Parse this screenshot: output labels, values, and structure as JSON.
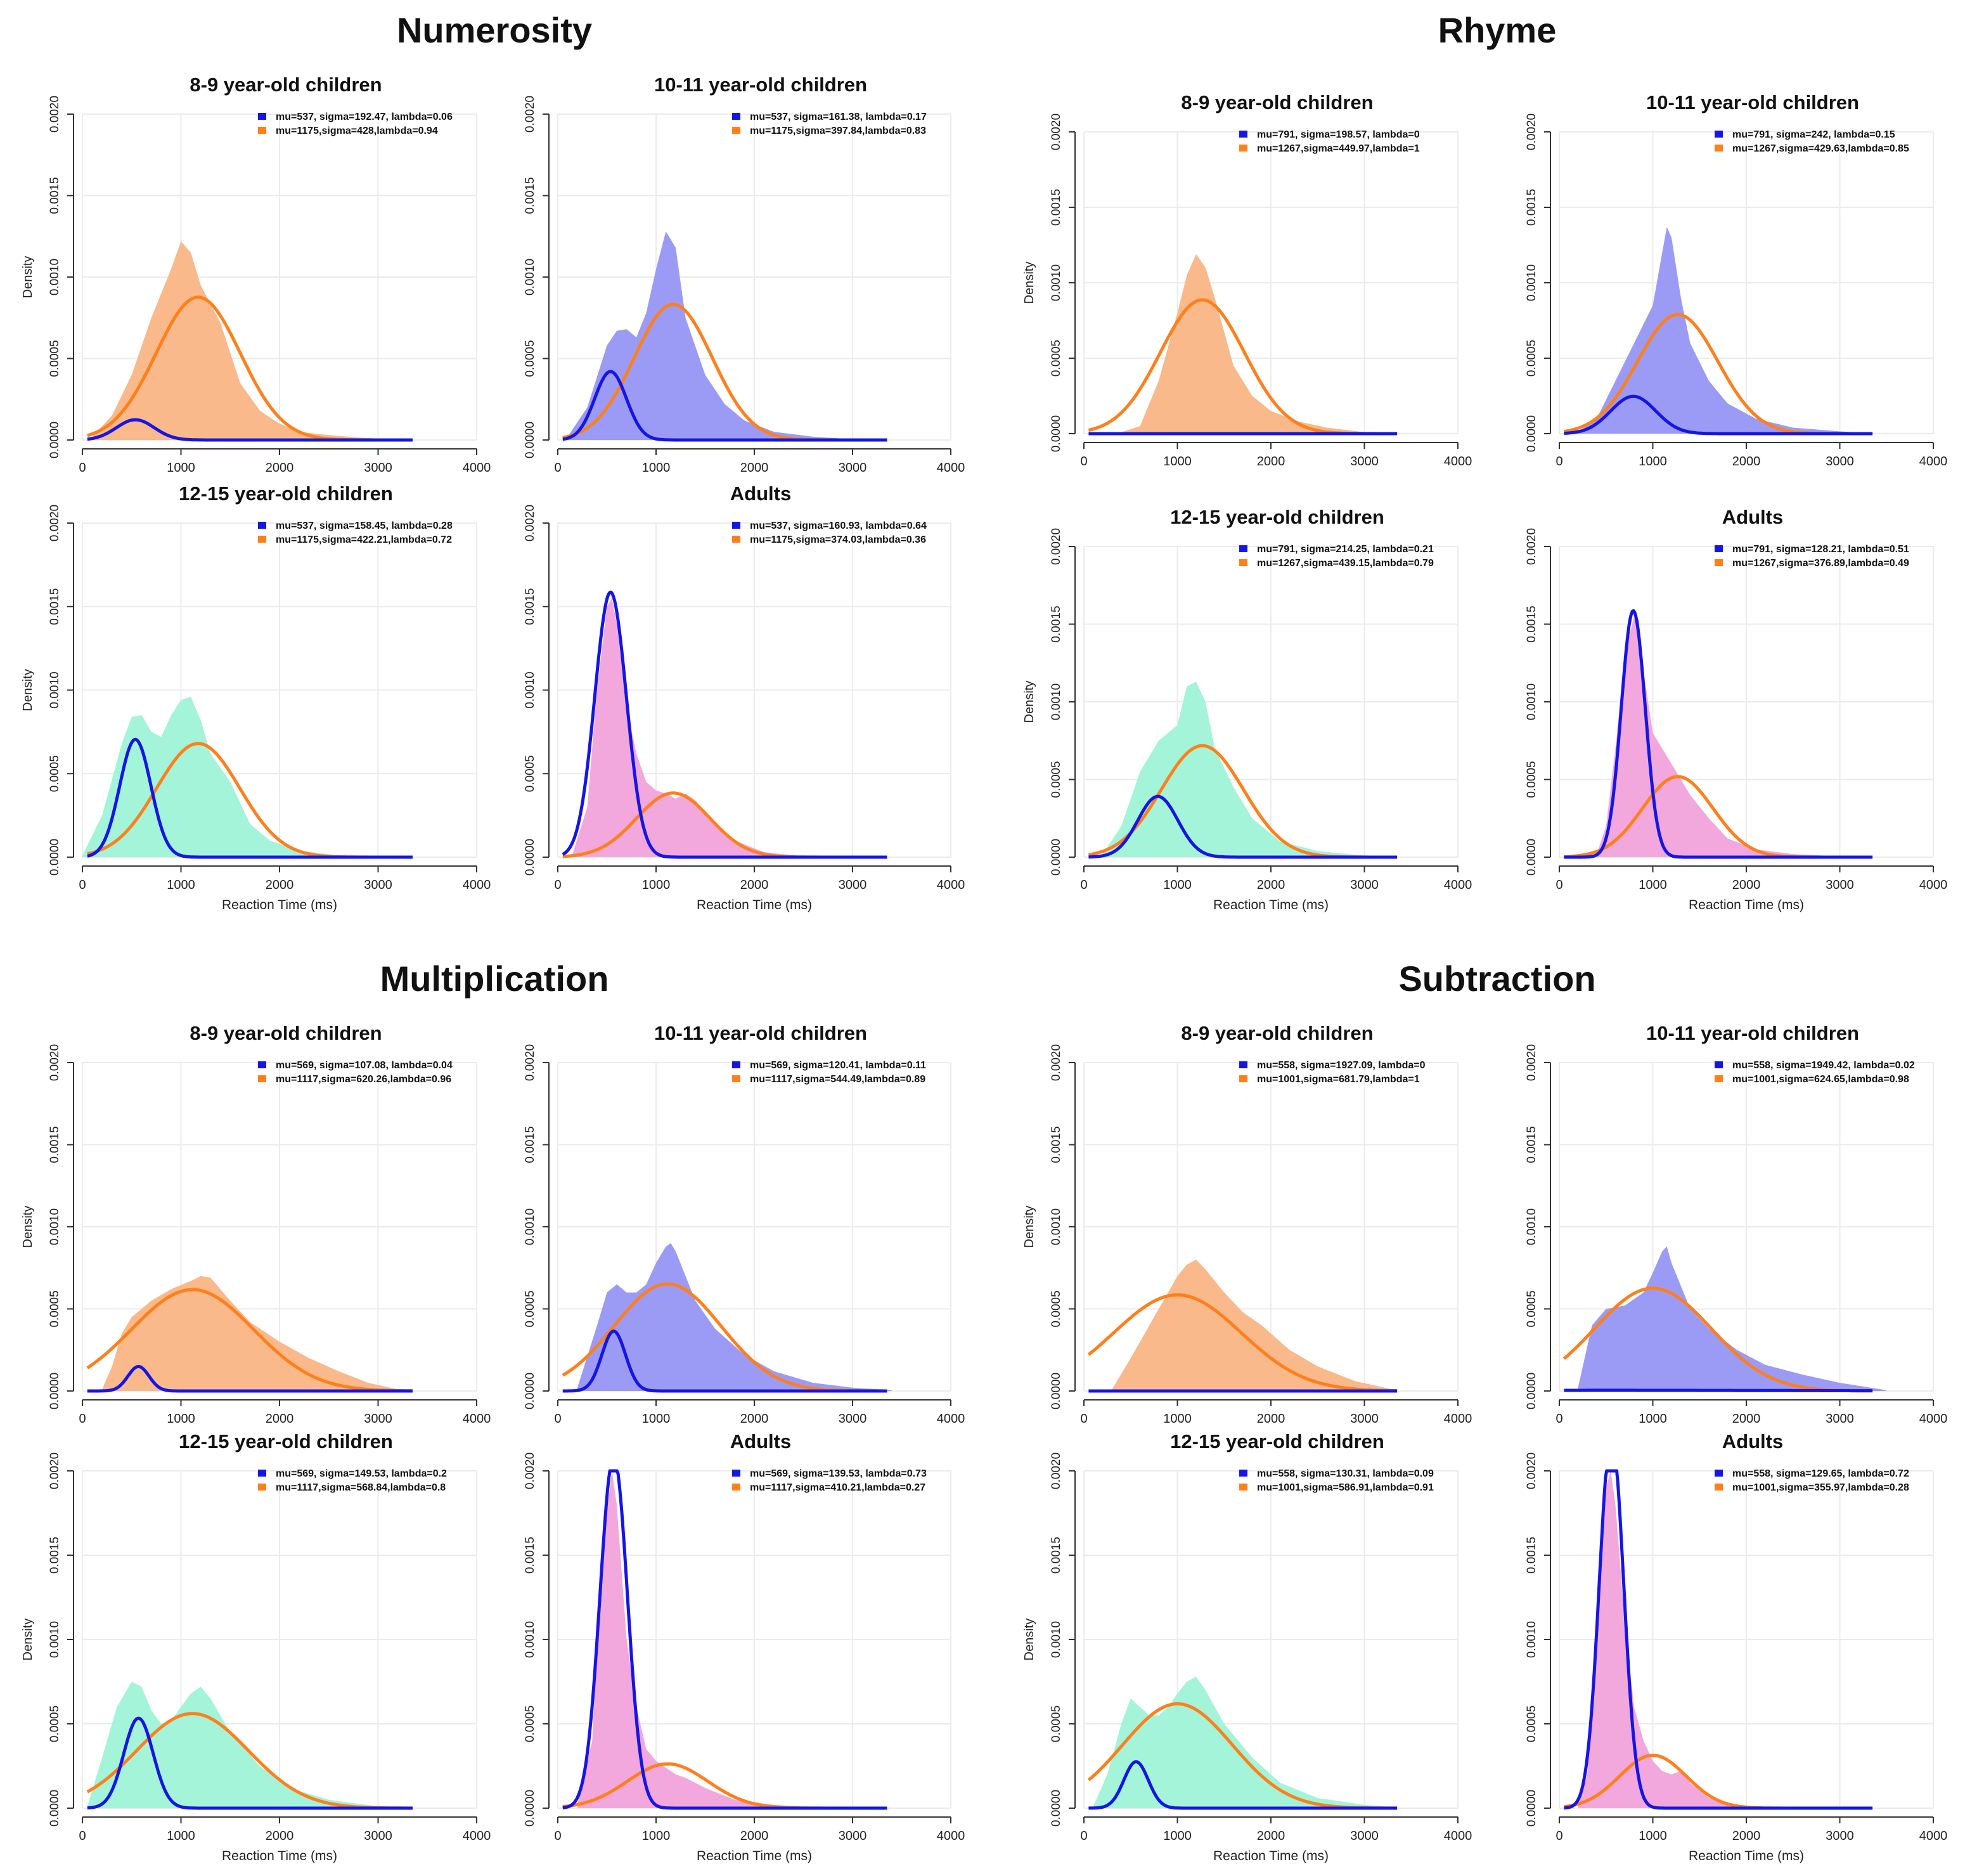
{
  "figure": {
    "sections": [
      {
        "title": "Numerosity"
      },
      {
        "title": "Rhyme"
      },
      {
        "title": "Multiplication"
      },
      {
        "title": "Subtraction"
      }
    ]
  },
  "colors": {
    "fast_component": "#1515e6",
    "slow_component": "#ff7f1a",
    "fill_8_9": "#f9b98b",
    "fill_10_11": "#9b9bf6",
    "fill_12_15": "#a3f4d9",
    "fill_adults": "#f2a8dc",
    "grid": "#ebebeb",
    "axis": "#333333"
  },
  "axes": {
    "xlabel": "Reaction Time (ms)",
    "ylabel": "Density",
    "xlim": [
      0,
      4000
    ],
    "ylim": [
      0,
      0.002
    ],
    "xticks": [
      "0",
      "1000",
      "2000",
      "3000",
      "4000"
    ],
    "yticks": [
      "0.0000",
      "0.0005",
      "0.0010",
      "0.0015",
      "0.0020"
    ]
  },
  "chart_data": [
    {
      "section": "Numerosity",
      "title": "8-9 year-old children",
      "type": "area",
      "fill": "fill_8_9",
      "legend": [
        "mu=537, sigma=192.47, lambda=0.06",
        "mu=1175,sigma=428,lambda=0.94"
      ],
      "fast": {
        "mu": 537,
        "sigma": 192.47,
        "lambda": 0.06
      },
      "slow": {
        "mu": 1175,
        "sigma": 428,
        "lambda": 0.94
      },
      "x": [
        100,
        300,
        500,
        700,
        900,
        1000,
        1100,
        1200,
        1400,
        1600,
        1800,
        2000,
        2200,
        2500,
        2800,
        3100
      ],
      "density": [
        2e-05,
        0.00015,
        0.0004,
        0.00075,
        0.00105,
        0.00122,
        0.00115,
        0.00095,
        0.00072,
        0.00035,
        0.00018,
        0.0001,
        5e-05,
        3e-05,
        1.5e-05,
        5e-06
      ],
      "show_xlabel": false,
      "show_ylabel": true
    },
    {
      "section": "Numerosity",
      "title": "10-11 year-old children",
      "type": "area",
      "fill": "fill_10_11",
      "legend": [
        "mu=537, sigma=161.38, lambda=0.17",
        "mu=1175,sigma=397.84,lambda=0.83"
      ],
      "fast": {
        "mu": 537,
        "sigma": 161.38,
        "lambda": 0.17
      },
      "slow": {
        "mu": 1175,
        "sigma": 397.84,
        "lambda": 0.83
      },
      "x": [
        100,
        300,
        500,
        600,
        700,
        800,
        900,
        1000,
        1100,
        1200,
        1300,
        1500,
        1700,
        1900,
        2200,
        2600,
        3000
      ],
      "density": [
        2e-05,
        0.0002,
        0.00058,
        0.00067,
        0.00068,
        0.00063,
        0.00078,
        0.00105,
        0.00128,
        0.00118,
        0.00075,
        0.0004,
        0.00022,
        0.00012,
        5e-05,
        2e-05,
        5e-06
      ],
      "show_xlabel": false,
      "show_ylabel": false
    },
    {
      "section": "Rhyme",
      "title": "8-9 year-old children",
      "type": "area",
      "fill": "fill_8_9",
      "legend": [
        "mu=791, sigma=198.57, lambda=0",
        "mu=1267,sigma=449.97,lambda=1"
      ],
      "fast": {
        "mu": 791,
        "sigma": 198.57,
        "lambda": 0
      },
      "slow": {
        "mu": 1267,
        "sigma": 449.97,
        "lambda": 1
      },
      "x": [
        400,
        600,
        800,
        1000,
        1100,
        1200,
        1300,
        1400,
        1600,
        1800,
        2000,
        2300,
        2600,
        3000
      ],
      "density": [
        1e-05,
        5e-05,
        0.00035,
        0.0008,
        0.00105,
        0.00119,
        0.0011,
        0.0009,
        0.00045,
        0.00025,
        0.00015,
        8e-05,
        4e-05,
        1e-05
      ],
      "show_xlabel": false,
      "show_ylabel": true
    },
    {
      "section": "Rhyme",
      "title": "10-11 year-old children",
      "type": "area",
      "fill": "fill_10_11",
      "legend": [
        "mu=791, sigma=242, lambda=0.15",
        "mu=1267,sigma=429.63,lambda=0.85"
      ],
      "fast": {
        "mu": 791,
        "sigma": 242,
        "lambda": 0.15
      },
      "slow": {
        "mu": 1267,
        "sigma": 429.63,
        "lambda": 0.85
      },
      "x": [
        200,
        400,
        600,
        800,
        1000,
        1100,
        1150,
        1200,
        1300,
        1400,
        1600,
        1800,
        2100,
        2500,
        3000,
        3300
      ],
      "density": [
        1e-05,
        0.0001,
        0.00035,
        0.0006,
        0.00085,
        0.0012,
        0.00137,
        0.0013,
        0.0009,
        0.0006,
        0.00035,
        0.0002,
        0.0001,
        4e-05,
        1.5e-05,
        3e-06
      ],
      "show_xlabel": false,
      "show_ylabel": false
    },
    {
      "section": "Numerosity",
      "title": "12-15 year-old children",
      "type": "area",
      "fill": "fill_12_15",
      "legend": [
        "mu=537, sigma=158.45, lambda=0.28",
        "mu=1175,sigma=422.21,lambda=0.72"
      ],
      "fast": {
        "mu": 537,
        "sigma": 158.45,
        "lambda": 0.28
      },
      "slow": {
        "mu": 1175,
        "sigma": 422.21,
        "lambda": 0.72
      },
      "x": [
        0,
        200,
        400,
        500,
        600,
        700,
        800,
        900,
        1000,
        1100,
        1200,
        1300,
        1500,
        1700,
        1900,
        2200,
        2600
      ],
      "density": [
        1e-05,
        0.00025,
        0.00068,
        0.00084,
        0.00085,
        0.00075,
        0.00072,
        0.00085,
        0.00094,
        0.00096,
        0.00082,
        0.00062,
        0.00045,
        0.0002,
        0.0001,
        4e-05,
        1e-05
      ],
      "show_xlabel": true,
      "show_ylabel": true
    },
    {
      "section": "Numerosity",
      "title": "Adults",
      "type": "area",
      "fill": "fill_adults",
      "legend": [
        "mu=537, sigma=160.93, lambda=0.64",
        "mu=1175,sigma=374.03,lambda=0.36"
      ],
      "fast": {
        "mu": 537,
        "sigma": 160.93,
        "lambda": 0.64
      },
      "slow": {
        "mu": 1175,
        "sigma": 374.03,
        "lambda": 0.36
      },
      "x": [
        150,
        300,
        400,
        500,
        550,
        600,
        700,
        800,
        900,
        1000,
        1100,
        1200,
        1300,
        1400,
        1600,
        1800,
        2100,
        2500
      ],
      "density": [
        2e-05,
        0.0003,
        0.001,
        0.0015,
        0.00155,
        0.0014,
        0.0009,
        0.00062,
        0.00045,
        0.0004,
        0.00038,
        0.00035,
        0.00038,
        0.00034,
        0.0002,
        0.0001,
        3e-05,
        5e-06
      ],
      "show_xlabel": true,
      "show_ylabel": false
    },
    {
      "section": "Rhyme",
      "title": "12-15 year-old children",
      "type": "area",
      "fill": "fill_12_15",
      "legend": [
        "mu=791, sigma=214.25, lambda=0.21",
        "mu=1267,sigma=439.15,lambda=0.79"
      ],
      "fast": {
        "mu": 791,
        "sigma": 214.25,
        "lambda": 0.21
      },
      "slow": {
        "mu": 1267,
        "sigma": 439.15,
        "lambda": 0.79
      },
      "x": [
        200,
        400,
        600,
        800,
        900,
        1000,
        1100,
        1200,
        1300,
        1400,
        1600,
        1800,
        2100,
        2500,
        3000
      ],
      "density": [
        2e-05,
        0.0002,
        0.00055,
        0.00075,
        0.0008,
        0.00085,
        0.0011,
        0.00113,
        0.001,
        0.0007,
        0.00045,
        0.00025,
        0.0001,
        4e-05,
        1e-05
      ],
      "show_xlabel": true,
      "show_ylabel": true
    },
    {
      "section": "Rhyme",
      "title": "Adults",
      "type": "area",
      "fill": "fill_adults",
      "legend": [
        "mu=791, sigma=128.21, lambda=0.51",
        "mu=1267,sigma=376.89,lambda=0.49"
      ],
      "fast": {
        "mu": 791,
        "sigma": 128.21,
        "lambda": 0.51
      },
      "slow": {
        "mu": 1267,
        "sigma": 376.89,
        "lambda": 0.49
      },
      "x": [
        400,
        500,
        600,
        700,
        800,
        850,
        900,
        1000,
        1100,
        1200,
        1400,
        1600,
        1800,
        2100,
        2500,
        3000
      ],
      "density": [
        2e-05,
        0.0002,
        0.0007,
        0.0013,
        0.00155,
        0.00153,
        0.0012,
        0.0008,
        0.0007,
        0.0006,
        0.0004,
        0.00025,
        0.00012,
        5e-05,
        2e-05,
        5e-06
      ],
      "show_xlabel": true,
      "show_ylabel": false
    },
    {
      "section": "Multiplication",
      "title": "8-9 year-old children",
      "type": "area",
      "fill": "fill_8_9",
      "legend": [
        "mu=569, sigma=107.08, lambda=0.04",
        "mu=1117,sigma=620.26,lambda=0.96"
      ],
      "fast": {
        "mu": 569,
        "sigma": 107.08,
        "lambda": 0.04
      },
      "slow": {
        "mu": 1117,
        "sigma": 620.26,
        "lambda": 0.96
      },
      "x": [
        200,
        300,
        400,
        500,
        700,
        900,
        1100,
        1200,
        1300,
        1500,
        1700,
        2000,
        2300,
        2600,
        2900,
        3200
      ],
      "density": [
        1e-05,
        0.00015,
        0.00035,
        0.00045,
        0.00055,
        0.00062,
        0.00067,
        0.0007,
        0.00069,
        0.00055,
        0.00042,
        0.0003,
        0.0002,
        0.00012,
        5e-05,
        1e-05
      ],
      "show_xlabel": false,
      "show_ylabel": true
    },
    {
      "section": "Multiplication",
      "title": "10-11 year-old children",
      "type": "area",
      "fill": "fill_10_11",
      "legend": [
        "mu=569, sigma=120.41, lambda=0.11",
        "mu=1117,sigma=544.49,lambda=0.89"
      ],
      "fast": {
        "mu": 569,
        "sigma": 120.41,
        "lambda": 0.11
      },
      "slow": {
        "mu": 1117,
        "sigma": 544.49,
        "lambda": 0.89
      },
      "x": [
        200,
        400,
        500,
        600,
        700,
        800,
        900,
        1000,
        1100,
        1150,
        1200,
        1400,
        1600,
        1900,
        2200,
        2600,
        3000,
        3400
      ],
      "density": [
        2e-05,
        0.0004,
        0.0006,
        0.00065,
        0.0006,
        0.0006,
        0.00065,
        0.00078,
        0.00088,
        0.0009,
        0.00085,
        0.00055,
        0.00038,
        0.00022,
        0.00012,
        5e-05,
        2e-05,
        5e-06
      ],
      "show_xlabel": false,
      "show_ylabel": false
    },
    {
      "section": "Subtraction",
      "title": "8-9 year-old children",
      "type": "area",
      "fill": "fill_8_9",
      "legend": [
        "mu=558, sigma=1927.09, lambda=0",
        "mu=1001,sigma=681.79,lambda=1"
      ],
      "fast": {
        "mu": 558,
        "sigma": 1927.09,
        "lambda": 0
      },
      "slow": {
        "mu": 1001,
        "sigma": 681.79,
        "lambda": 1
      },
      "x": [
        300,
        500,
        700,
        900,
        1000,
        1100,
        1200,
        1300,
        1500,
        1700,
        1900,
        2200,
        2500,
        2900,
        3300
      ],
      "density": [
        1e-05,
        0.0002,
        0.0004,
        0.0006,
        0.0007,
        0.00077,
        0.0008,
        0.00074,
        0.0006,
        0.00048,
        0.0004,
        0.00025,
        0.00015,
        6e-05,
        1e-05
      ],
      "show_xlabel": false,
      "show_ylabel": true
    },
    {
      "section": "Subtraction",
      "title": "10-11 year-old children",
      "type": "area",
      "fill": "fill_10_11",
      "legend": [
        "mu=558, sigma=1949.42, lambda=0.02",
        "mu=1001,sigma=624.65,lambda=0.98"
      ],
      "fast": {
        "mu": 558,
        "sigma": 1949.42,
        "lambda": 0.02
      },
      "slow": {
        "mu": 1001,
        "sigma": 624.65,
        "lambda": 0.98
      },
      "x": [
        200,
        350,
        500,
        700,
        900,
        1000,
        1100,
        1150,
        1200,
        1400,
        1600,
        1900,
        2200,
        2600,
        3000,
        3500
      ],
      "density": [
        2e-05,
        0.0004,
        0.0005,
        0.00052,
        0.0006,
        0.00072,
        0.00085,
        0.00088,
        0.00078,
        0.0005,
        0.00038,
        0.00025,
        0.00016,
        0.0001,
        5e-05,
        5e-06
      ],
      "show_xlabel": false,
      "show_ylabel": false
    },
    {
      "section": "Multiplication",
      "title": "12-15 year-old children",
      "type": "area",
      "fill": "fill_12_15",
      "legend": [
        "mu=569, sigma=149.53, lambda=0.2",
        "mu=1117,sigma=568.84,lambda=0.8"
      ],
      "fast": {
        "mu": 569,
        "sigma": 149.53,
        "lambda": 0.2
      },
      "slow": {
        "mu": 1117,
        "sigma": 568.84,
        "lambda": 0.8
      },
      "x": [
        50,
        200,
        350,
        500,
        600,
        700,
        800,
        900,
        1000,
        1100,
        1200,
        1300,
        1500,
        1800,
        2100,
        2500,
        3000
      ],
      "density": [
        1e-05,
        0.0003,
        0.0006,
        0.00075,
        0.00072,
        0.00058,
        0.0005,
        0.00052,
        0.0006,
        0.00068,
        0.00072,
        0.00065,
        0.00045,
        0.00025,
        0.00012,
        5e-05,
        1e-05
      ],
      "show_xlabel": true,
      "show_ylabel": true
    },
    {
      "section": "Multiplication",
      "title": "Adults",
      "type": "area",
      "fill": "fill_adults",
      "legend": [
        "mu=569, sigma=139.53, lambda=0.73",
        "mu=1117,sigma=410.21,lambda=0.27"
      ],
      "fast": {
        "mu": 569,
        "sigma": 139.53,
        "lambda": 0.73
      },
      "slow": {
        "mu": 1117,
        "sigma": 410.21,
        "lambda": 0.27
      },
      "x": [
        200,
        350,
        450,
        550,
        600,
        700,
        800,
        900,
        1000,
        1100,
        1200,
        1300,
        1500,
        1800,
        2200,
        2600
      ],
      "density": [
        2e-05,
        0.0004,
        0.0015,
        0.002,
        0.0018,
        0.001,
        0.0006,
        0.00035,
        0.00028,
        0.00024,
        0.0002,
        0.00018,
        0.00012,
        5e-05,
        2e-05,
        5e-06
      ],
      "show_xlabel": true,
      "show_ylabel": false
    },
    {
      "section": "Subtraction",
      "title": "12-15 year-old children",
      "type": "area",
      "fill": "fill_12_15",
      "legend": [
        "mu=558, sigma=130.31, lambda=0.09",
        "mu=1001,sigma=586.91,lambda=0.91"
      ],
      "fast": {
        "mu": 558,
        "sigma": 130.31,
        "lambda": 0.09
      },
      "slow": {
        "mu": 1001,
        "sigma": 586.91,
        "lambda": 0.91
      },
      "x": [
        100,
        250,
        400,
        500,
        600,
        700,
        800,
        900,
        1000,
        1100,
        1200,
        1300,
        1500,
        1800,
        2100,
        2500,
        3000,
        3300
      ],
      "density": [
        1e-05,
        0.0002,
        0.0005,
        0.00065,
        0.0006,
        0.00055,
        0.00055,
        0.0006,
        0.00068,
        0.00075,
        0.00078,
        0.0007,
        0.0005,
        0.0003,
        0.00015,
        6e-05,
        2e-05,
        5e-06
      ],
      "show_xlabel": true,
      "show_ylabel": true
    },
    {
      "section": "Subtraction",
      "title": "Adults",
      "type": "area",
      "fill": "fill_adults",
      "legend": [
        "mu=558, sigma=129.65, lambda=0.72",
        "mu=1001,sigma=355.97,lambda=0.28"
      ],
      "fast": {
        "mu": 558,
        "sigma": 129.65,
        "lambda": 0.72
      },
      "slow": {
        "mu": 1001,
        "sigma": 355.97,
        "lambda": 0.28
      },
      "x": [
        200,
        300,
        400,
        500,
        550,
        600,
        700,
        800,
        900,
        1000,
        1100,
        1200,
        1300,
        1400,
        1600,
        1900,
        2300
      ],
      "density": [
        2e-05,
        0.0002,
        0.0009,
        0.0019,
        0.002,
        0.0018,
        0.0011,
        0.0006,
        0.0004,
        0.00028,
        0.00022,
        0.0002,
        0.00022,
        0.00015,
        6e-05,
        2e-05,
        5e-06
      ],
      "show_xlabel": true,
      "show_ylabel": false
    }
  ]
}
